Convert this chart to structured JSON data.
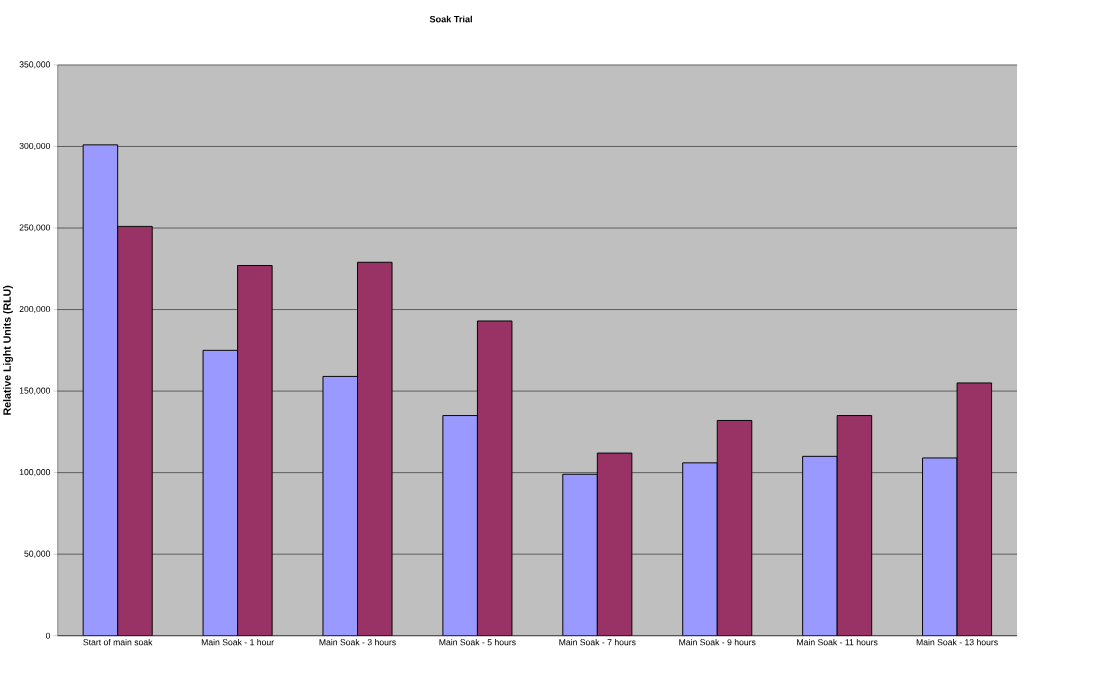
{
  "chart_data": {
    "type": "bar",
    "title": "Soak Trial",
    "ylabel": "Relative Light Units (RLU)",
    "categories": [
      "Start of main soak",
      "Main Soak - 1 hour",
      "Main Soak - 3 hours",
      "Main Soak - 5 hours",
      "Main Soak - 7 hours",
      "Main Soak - 9 hours",
      "Main Soak - 11 hours",
      "Main Soak - 13 hours"
    ],
    "series": [
      {
        "color": "#9999ff",
        "values": [
          301000,
          175000,
          159000,
          135000,
          99000,
          106000,
          110000,
          109000
        ]
      },
      {
        "color": "#993366",
        "values": [
          251000,
          227000,
          229000,
          193000,
          112000,
          132000,
          135000,
          155000
        ]
      }
    ],
    "ylim": [
      0,
      350000
    ],
    "yticks": [
      {
        "value": 0,
        "label": "0"
      },
      {
        "value": 50000,
        "label": "50,000"
      },
      {
        "value": 100000,
        "label": "100,000"
      },
      {
        "value": 150000,
        "label": "150,000"
      },
      {
        "value": 200000,
        "label": "200,000"
      },
      {
        "value": 250000,
        "label": "250,000"
      },
      {
        "value": 300000,
        "label": "300,000"
      },
      {
        "value": 350000,
        "label": "350,000"
      }
    ],
    "grid": "y"
  }
}
